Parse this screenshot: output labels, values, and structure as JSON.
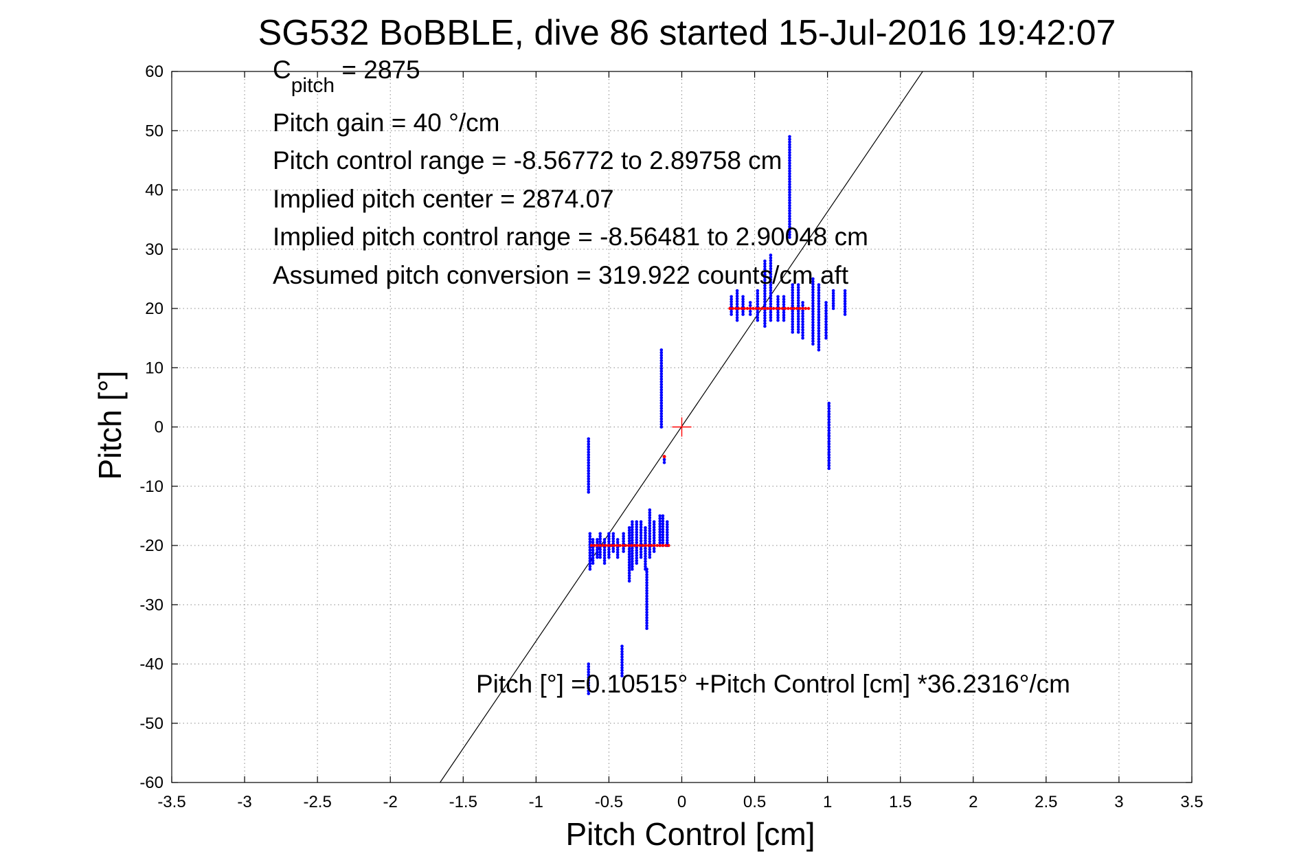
{
  "chart_data": {
    "type": "scatter",
    "title": "SG532 BoBBLE, dive 86 started 15-Jul-2016 19:42:07",
    "xlabel": "Pitch Control [cm]",
    "ylabel": "Pitch [°]",
    "xlim": [
      -3.5,
      3.5
    ],
    "ylim": [
      -60,
      60
    ],
    "xticks": [
      -3.5,
      -3,
      -2.5,
      -2,
      -1.5,
      -1,
      -0.5,
      0,
      0.5,
      1,
      1.5,
      2,
      2.5,
      3,
      3.5
    ],
    "xtick_labels": [
      "-3.5",
      "-3",
      "-2.5",
      "-2",
      "-1.5",
      "-1",
      "-0.5",
      "0",
      "0.5",
      "1",
      "1.5",
      "2",
      "2.5",
      "3",
      "3.5"
    ],
    "yticks": [
      -60,
      -50,
      -40,
      -30,
      -20,
      -10,
      0,
      10,
      20,
      30,
      40,
      50,
      60
    ],
    "ytick_labels": [
      "-60",
      "-50",
      "-40",
      "-30",
      "-20",
      "-10",
      "0",
      "10",
      "20",
      "30",
      "40",
      "50",
      "60"
    ],
    "grid": true,
    "colors": {
      "measured": "#0000ff",
      "commanded": "#ff0000",
      "fit": "#000000",
      "axes": "#000000",
      "grid": "#888888"
    },
    "annotations": {
      "c_pitch_main": "C",
      "c_pitch_sub": "pitch",
      "c_pitch_value": " = 2875",
      "pitch_gain": "Pitch gain = 40 °/cm",
      "control_range": "Pitch control range = -8.56772 to 2.89758 cm",
      "implied_center": "Implied pitch center = 2874.07",
      "implied_range": "Implied pitch control range = -8.56481 to 2.90048 cm",
      "conversion": "Assumed pitch conversion = 319.922 counts/cm aft",
      "fit_equation": "Pitch [°] =0.10515° +Pitch Control [cm] *36.2316°/cm"
    },
    "fit_line": {
      "intercept": 0.10515,
      "slope": 36.2316
    },
    "center_marker": {
      "x": 0,
      "y": 0
    },
    "series": [
      {
        "kind": "measured",
        "clusters": [
          {
            "x": -0.63,
            "y_min": -24,
            "y_max": -18
          },
          {
            "x": -0.61,
            "y_min": -23,
            "y_max": -19
          },
          {
            "x": -0.58,
            "y_min": -22,
            "y_max": -19
          },
          {
            "x": -0.56,
            "y_min": -22,
            "y_max": -18
          },
          {
            "x": -0.53,
            "y_min": -23,
            "y_max": -19
          },
          {
            "x": -0.5,
            "y_min": -22,
            "y_max": -18
          },
          {
            "x": -0.47,
            "y_min": -21,
            "y_max": -18
          },
          {
            "x": -0.44,
            "y_min": -22,
            "y_max": -19
          },
          {
            "x": -0.4,
            "y_min": -21,
            "y_max": -18
          },
          {
            "x": -0.36,
            "y_min": -26,
            "y_max": -17
          },
          {
            "x": -0.34,
            "y_min": -24,
            "y_max": -16
          },
          {
            "x": -0.31,
            "y_min": -23,
            "y_max": -16
          },
          {
            "x": -0.28,
            "y_min": -22,
            "y_max": -16
          },
          {
            "x": -0.25,
            "y_min": -24,
            "y_max": -17
          },
          {
            "x": -0.22,
            "y_min": -22,
            "y_max": -14
          },
          {
            "x": -0.19,
            "y_min": -21,
            "y_max": -16
          },
          {
            "x": -0.15,
            "y_min": -20,
            "y_max": -15
          },
          {
            "x": -0.13,
            "y_min": -20,
            "y_max": -15
          },
          {
            "x": -0.1,
            "y_min": -20,
            "y_max": -16
          },
          {
            "x": -0.64,
            "y_min": -11,
            "y_max": -2
          },
          {
            "x": -0.64,
            "y_min": -45,
            "y_max": -40
          },
          {
            "x": -0.41,
            "y_min": -42,
            "y_max": -37
          },
          {
            "x": -0.24,
            "y_min": -34,
            "y_max": -24
          },
          {
            "x": -0.14,
            "y_min": 0,
            "y_max": 13
          },
          {
            "x": -0.12,
            "y_min": -6,
            "y_max": -5
          },
          {
            "x": 0.34,
            "y_min": 19,
            "y_max": 22
          },
          {
            "x": 0.38,
            "y_min": 18,
            "y_max": 23
          },
          {
            "x": 0.42,
            "y_min": 19,
            "y_max": 22
          },
          {
            "x": 0.47,
            "y_min": 19,
            "y_max": 21
          },
          {
            "x": 0.52,
            "y_min": 18,
            "y_max": 23
          },
          {
            "x": 0.57,
            "y_min": 17,
            "y_max": 28
          },
          {
            "x": 0.61,
            "y_min": 18,
            "y_max": 29
          },
          {
            "x": 0.66,
            "y_min": 18,
            "y_max": 22
          },
          {
            "x": 0.7,
            "y_min": 18,
            "y_max": 22
          },
          {
            "x": 0.74,
            "y_min": 32,
            "y_max": 49
          },
          {
            "x": 0.76,
            "y_min": 16,
            "y_max": 24
          },
          {
            "x": 0.8,
            "y_min": 16,
            "y_max": 24
          },
          {
            "x": 0.83,
            "y_min": 15,
            "y_max": 21
          },
          {
            "x": 0.9,
            "y_min": 14,
            "y_max": 25
          },
          {
            "x": 0.94,
            "y_min": 13,
            "y_max": 24
          },
          {
            "x": 0.99,
            "y_min": 15,
            "y_max": 21
          },
          {
            "x": 1.01,
            "y_min": -7,
            "y_max": 4
          },
          {
            "x": 1.04,
            "y_min": 20,
            "y_max": 23
          },
          {
            "x": 1.12,
            "y_min": 19,
            "y_max": 23
          }
        ]
      },
      {
        "kind": "commanded",
        "segments": [
          {
            "x_start": -0.62,
            "x_end": -0.09,
            "y": -20
          },
          {
            "x_start": 0.33,
            "x_end": 0.87,
            "y": 20
          }
        ],
        "points": [
          {
            "x": -0.12,
            "y": -5
          }
        ]
      }
    ]
  }
}
